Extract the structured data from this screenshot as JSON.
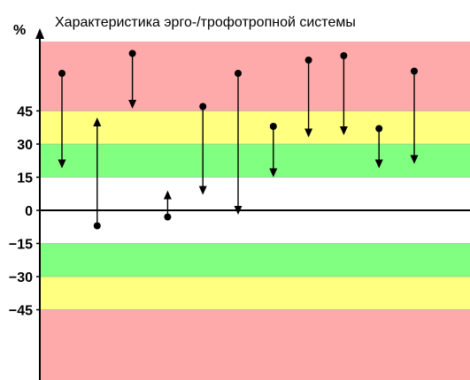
{
  "caption_fragment": "",
  "chart_data": {
    "type": "arrow-range",
    "title": "Характеристика эрго-/трофотропной системы",
    "ylabel": "%",
    "xlabel": "",
    "ylim": [
      -95,
      95
    ],
    "yticks": [
      45,
      30,
      15,
      0,
      -15,
      -30,
      -45
    ],
    "ytick_labels": [
      "45",
      "30",
      "15",
      "0",
      "−15",
      "−30",
      "−45"
    ],
    "bands": [
      {
        "from": 45,
        "to": 95,
        "color": "#ffaaaa"
      },
      {
        "from": 30,
        "to": 45,
        "color": "#ffff80"
      },
      {
        "from": 15,
        "to": 30,
        "color": "#80ff80"
      },
      {
        "from": -15,
        "to": 15,
        "color": "#ffffff"
      },
      {
        "from": -30,
        "to": -15,
        "color": "#80ff80"
      },
      {
        "from": -45,
        "to": -30,
        "color": "#ffff80"
      },
      {
        "from": -95,
        "to": -45,
        "color": "#ffaaaa"
      }
    ],
    "series": [
      {
        "start": 62,
        "end": 19
      },
      {
        "start": -7,
        "end": 42
      },
      {
        "start": 71,
        "end": 46
      },
      {
        "start": -3,
        "end": 9
      },
      {
        "start": 47,
        "end": 7
      },
      {
        "start": 62,
        "end": -2
      },
      {
        "start": 38,
        "end": 15
      },
      {
        "start": 68,
        "end": 33
      },
      {
        "start": 70,
        "end": 34
      },
      {
        "start": 37,
        "end": 19
      },
      {
        "start": 63,
        "end": 21
      }
    ],
    "grid": false,
    "legend": "none"
  }
}
